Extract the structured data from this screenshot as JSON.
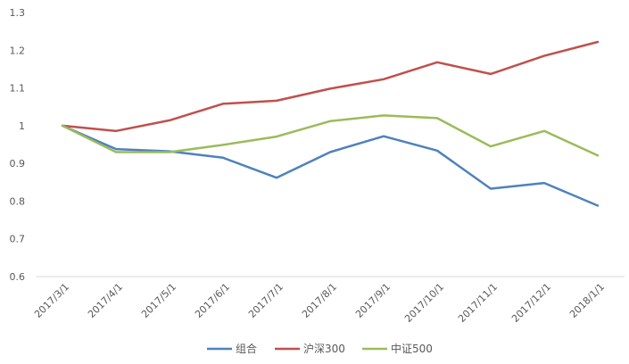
{
  "chart_data": {
    "type": "line",
    "title": "",
    "xlabel": "",
    "ylabel": "",
    "ylim": [
      0.6,
      1.3
    ],
    "yticks": [
      "0.6",
      "0.7",
      "0.8",
      "0.9",
      "1",
      "1.1",
      "1.2",
      "1.3"
    ],
    "grid": false,
    "legend_position": "bottom",
    "categories": [
      "2017/3/1",
      "2017/4/1",
      "2017/5/1",
      "2017/6/1",
      "2017/7/1",
      "2017/8/1",
      "2017/9/1",
      "2017/10/1",
      "2017/11/1",
      "2017/12/1",
      "2018/1/1"
    ],
    "series": [
      {
        "name": "组合",
        "color": "#4F81BD",
        "values": [
          1.0,
          0.938,
          0.932,
          0.915,
          0.862,
          0.93,
          0.972,
          0.934,
          0.833,
          0.848,
          0.788
        ]
      },
      {
        "name": "沪深300",
        "color": "#C0504D",
        "values": [
          1.0,
          0.986,
          1.014,
          1.058,
          1.066,
          1.098,
          1.123,
          1.168,
          1.137,
          1.185,
          1.222
        ]
      },
      {
        "name": "中证500",
        "color": "#9BBB59",
        "values": [
          1.0,
          0.93,
          0.93,
          0.949,
          0.971,
          1.012,
          1.027,
          1.02,
          0.945,
          0.986,
          0.921
        ]
      }
    ]
  }
}
